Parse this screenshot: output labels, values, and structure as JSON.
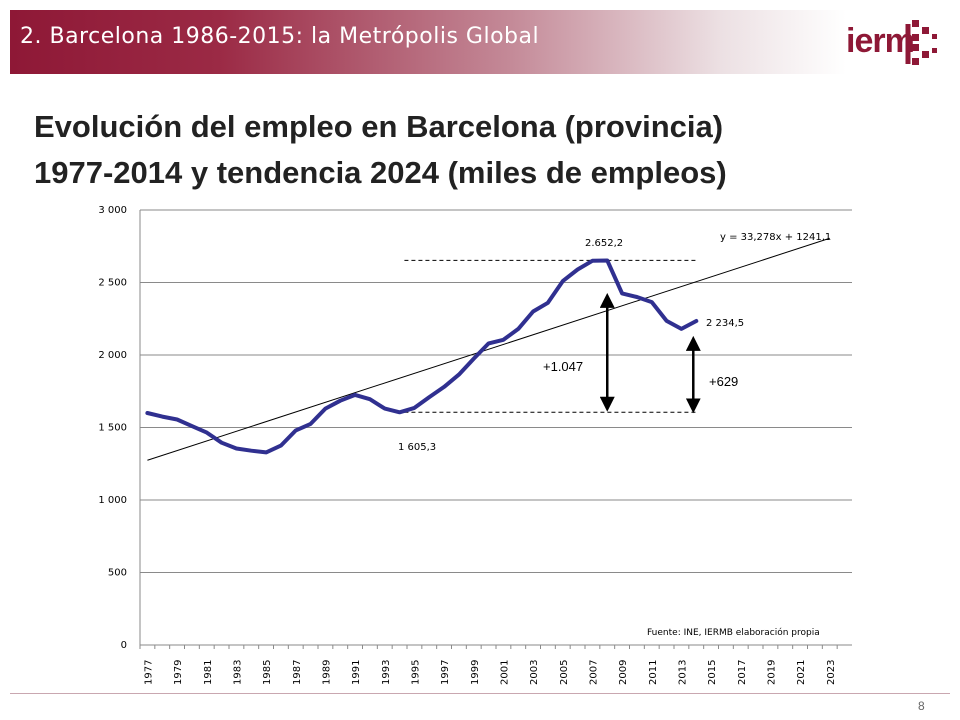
{
  "header": {
    "section_title": "2. Barcelona 1986-2015: la Metrópolis Global",
    "logo_text": "ierm"
  },
  "title": {
    "line1": "Evolución del empleo en Barcelona (provincia)",
    "line2": "1977-2014 y tendencia 2024 (miles de empleos)"
  },
  "colors": {
    "brand": "#8e1836",
    "series": "#303090"
  },
  "chart_data": {
    "type": "line",
    "ylim": [
      0,
      3000
    ],
    "xlim": [
      1977,
      2024
    ],
    "y_ticks": [
      {
        "value": 0,
        "label": "0"
      },
      {
        "value": 500,
        "label": "500"
      },
      {
        "value": 1000,
        "label": "1 000"
      },
      {
        "value": 1500,
        "label": "1 500"
      },
      {
        "value": 2000,
        "label": "2 000"
      },
      {
        "value": 2500,
        "label": "2 500"
      },
      {
        "value": 3000,
        "label": "3 000"
      }
    ],
    "x_tick_labels": [
      "1977",
      "1979",
      "1981",
      "1983",
      "1985",
      "1987",
      "1989",
      "1991",
      "1993",
      "1995",
      "1997",
      "1999",
      "2001",
      "2003",
      "2005",
      "2007",
      "2009",
      "2011",
      "2013",
      "2015",
      "2017",
      "2019",
      "2021",
      "2023"
    ],
    "grid": "horizontal",
    "series": [
      {
        "x": [
          1977,
          1978,
          1979,
          1980,
          1981,
          1982,
          1983,
          1984,
          1985,
          1986,
          1987,
          1988,
          1989,
          1990,
          1991,
          1992,
          1993,
          1994,
          1995,
          1996,
          1997,
          1998,
          1999,
          2000,
          2001,
          2002,
          2003,
          2004,
          2005,
          2006,
          2007,
          2008,
          2009,
          2010,
          2011,
          2012,
          2013,
          2014
        ],
        "y": [
          1600,
          1575,
          1555,
          1510,
          1465,
          1395,
          1355,
          1340,
          1328,
          1375,
          1480,
          1525,
          1630,
          1685,
          1725,
          1695,
          1630,
          1605,
          1635,
          1710,
          1780,
          1865,
          1975,
          2080,
          2105,
          2180,
          2300,
          2360,
          2510,
          2590,
          2650,
          2652,
          2425,
          2400,
          2365,
          2235,
          2180,
          2234.5
        ]
      }
    ],
    "trend": {
      "equation": "y = 33,278x + 1241,1",
      "slope": 33.278,
      "intercept": 1241.1,
      "x0": 1977,
      "x_start": 1977,
      "x_end": 2023
    },
    "annotations": {
      "peak_value": 2652.2,
      "peak_label": "2.652,2",
      "trough_value": 1605.3,
      "trough_label": "1 605,3",
      "last_label": "2 234,5",
      "gap_label": "+1.047",
      "gap_x": 2008,
      "growth_label": "+629",
      "growth_x": 2013.8,
      "growth_y": [
        1650,
        2080
      ],
      "dashed_x": [
        1995,
        2014
      ]
    },
    "source": "Fuente: INE, IERMB elaboración propia"
  },
  "page_number": "8"
}
